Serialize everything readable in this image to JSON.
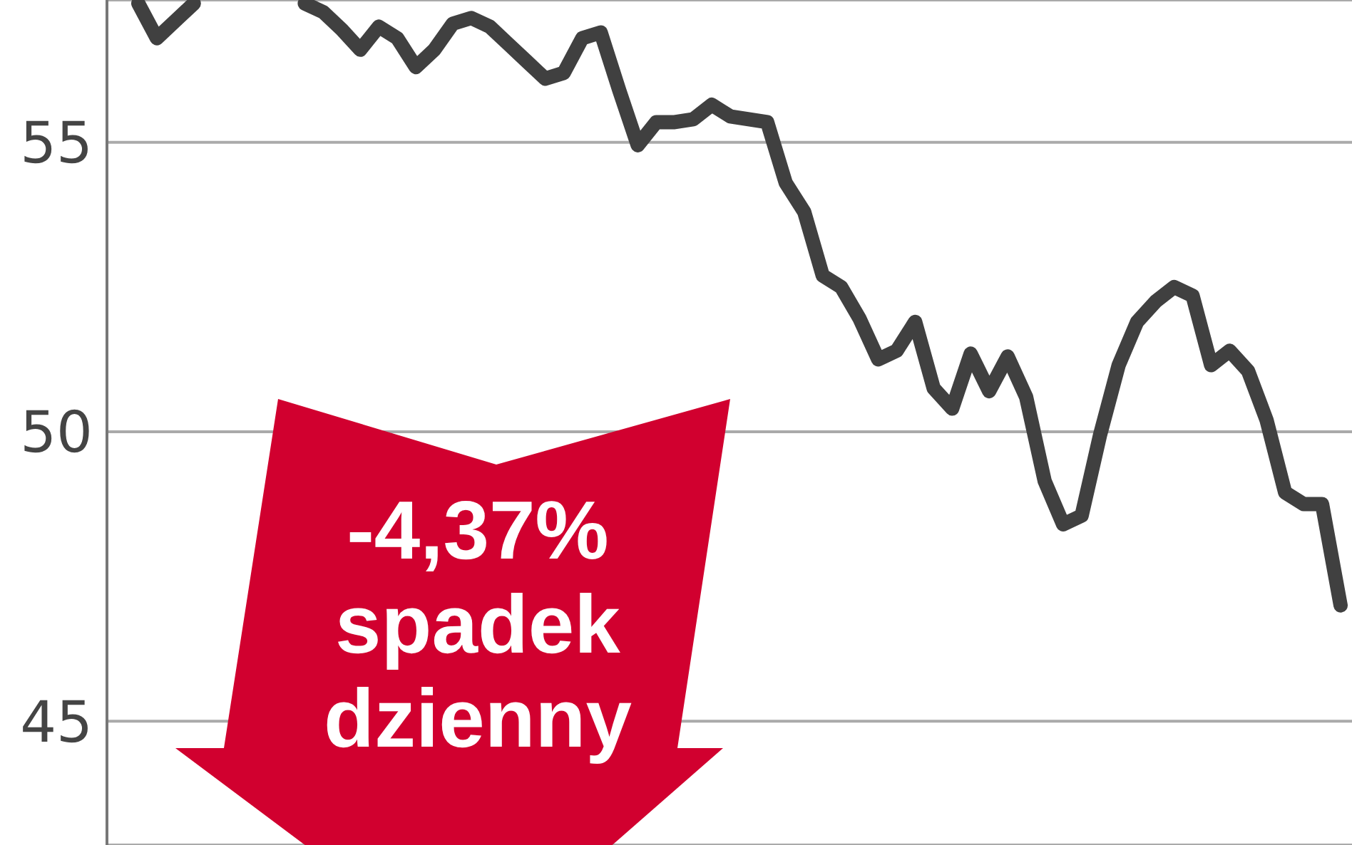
{
  "chart_data": {
    "type": "line",
    "categories": [
      null,
      null,
      null,
      null,
      null,
      null,
      null,
      null,
      null,
      null,
      null,
      null,
      null,
      null,
      null,
      null,
      null,
      null,
      null,
      null,
      null,
      null,
      null,
      null,
      null,
      null,
      null,
      null,
      null,
      null,
      null,
      null,
      null,
      null,
      null,
      null,
      null,
      null,
      null,
      null,
      null,
      null,
      null,
      null,
      null,
      null,
      null,
      null,
      null,
      null,
      null,
      null,
      null,
      null,
      null,
      null,
      null,
      null,
      null,
      null,
      null,
      null,
      null,
      null,
      null,
      null
    ],
    "series": [
      {
        "color": "#404040",
        "values": [
          57.4,
          56.8,
          57.1,
          57.4,
          null,
          null,
          null,
          null,
          null,
          null,
          null,
          null,
          null,
          null,
          null,
          null,
          null,
          null,
          null,
          null,
          null,
          null,
          null,
          null,
          null,
          null,
          null,
          null,
          null,
          null,
          null,
          null,
          null,
          null,
          null,
          null,
          null,
          null,
          null,
          null,
          null,
          null,
          null,
          null,
          null,
          null,
          null,
          null,
          null,
          null,
          null,
          null,
          null,
          null,
          null,
          null,
          null,
          null,
          null,
          null,
          null,
          null,
          null,
          null,
          null,
          null
        ]
      },
      {
        "color": "#404040",
        "values": [
          null,
          null,
          null,
          null,
          null,
          null,
          null,
          null,
          null,
          57.4,
          57.25,
          56.95,
          56.6,
          57.0,
          56.8,
          56.3,
          56.6,
          57.05,
          57.15,
          57.0,
          56.7,
          56.4,
          56.1,
          56.2,
          56.8,
          56.9,
          55.9,
          54.95,
          55.35,
          55.35,
          55.4,
          55.65,
          55.45,
          55.4,
          55.35,
          54.3,
          53.8,
          52.7,
          52.5,
          51.95,
          51.25,
          51.4,
          51.9,
          50.75,
          50.4,
          51.35,
          50.7,
          51.3,
          50.6,
          49.15,
          48.4,
          48.55,
          49.95,
          51.15,
          51.9,
          52.25,
          52.5,
          52.35,
          51.15,
          51.4,
          51.05,
          50.2,
          48.95,
          48.75,
          48.75,
          47.0
        ]
      }
    ],
    "ylim": [
      42.86,
      57.46
    ],
    "yticks": [
      45,
      50,
      55
    ],
    "grid": "y",
    "annotations": [
      "-4,37% spadek dzienny"
    ]
  }
}
